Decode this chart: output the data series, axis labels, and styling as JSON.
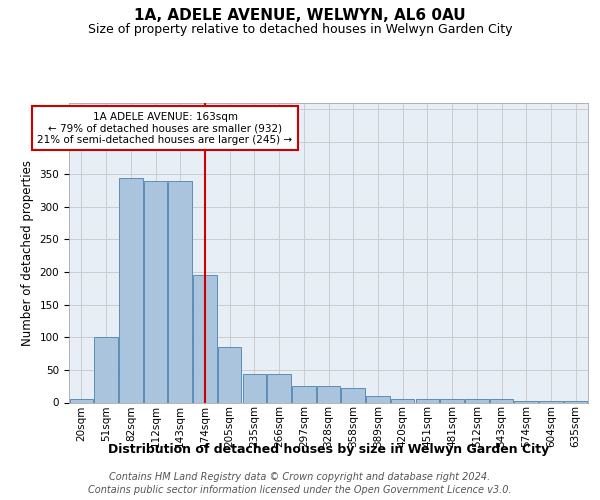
{
  "title": "1A, ADELE AVENUE, WELWYN, AL6 0AU",
  "subtitle": "Size of property relative to detached houses in Welwyn Garden City",
  "xlabel": "Distribution of detached houses by size in Welwyn Garden City",
  "ylabel": "Number of detached properties",
  "categories": [
    "20sqm",
    "51sqm",
    "82sqm",
    "112sqm",
    "143sqm",
    "174sqm",
    "205sqm",
    "235sqm",
    "266sqm",
    "297sqm",
    "328sqm",
    "358sqm",
    "389sqm",
    "420sqm",
    "451sqm",
    "481sqm",
    "512sqm",
    "543sqm",
    "574sqm",
    "604sqm",
    "635sqm"
  ],
  "values": [
    5,
    100,
    345,
    340,
    340,
    195,
    85,
    43,
    43,
    25,
    25,
    23,
    10,
    5,
    5,
    5,
    5,
    5,
    3,
    2,
    2
  ],
  "bar_color": "#aac4de",
  "bar_edge_color": "#5b8db8",
  "grid_color": "#cccccc",
  "background_color": "#e8eef5",
  "vline_x": 5,
  "vline_color": "#cc0000",
  "annotation_text": "1A ADELE AVENUE: 163sqm\n← 79% of detached houses are smaller (932)\n21% of semi-detached houses are larger (245) →",
  "annotation_box_color": "#ffffff",
  "annotation_box_edge": "#cc0000",
  "footer1": "Contains HM Land Registry data © Crown copyright and database right 2024.",
  "footer2": "Contains public sector information licensed under the Open Government Licence v3.0.",
  "ylim": [
    0,
    460
  ],
  "title_fontsize": 11,
  "subtitle_fontsize": 9,
  "xlabel_fontsize": 9,
  "ylabel_fontsize": 8.5,
  "tick_fontsize": 7.5,
  "footer_fontsize": 7
}
